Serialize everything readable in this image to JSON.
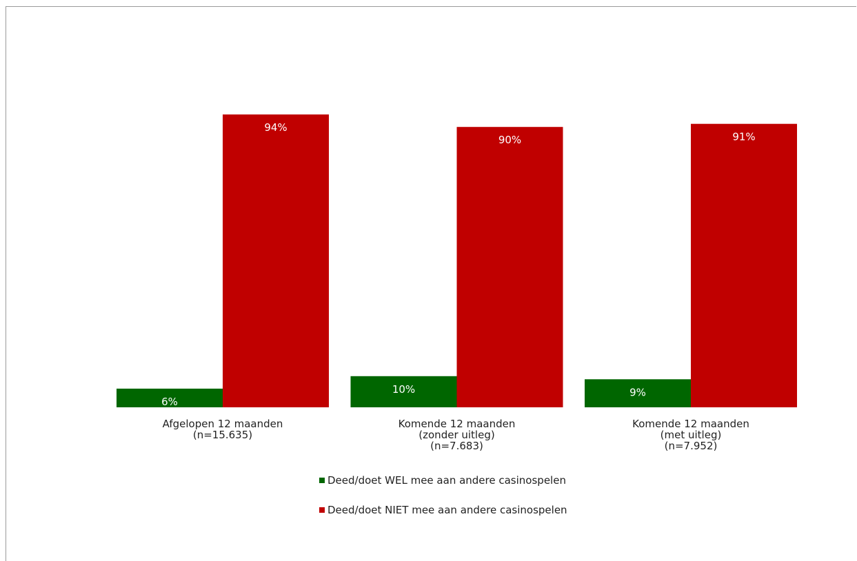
{
  "chart_data": {
    "type": "bar",
    "categories": [
      [
        "Afgelopen 12 maanden",
        "(n=15.635)"
      ],
      [
        "Komende 12 maanden",
        "(zonder uitleg)",
        "(n=7.683)"
      ],
      [
        "Komende 12 maanden",
        "(met uitleg)",
        "(n=7.952)"
      ]
    ],
    "series": [
      {
        "name": "Deed/doet WEL mee aan andere casinospelen",
        "values": [
          6,
          10,
          9
        ],
        "labels": [
          "6%",
          "10%",
          "9%"
        ],
        "color": "#006600"
      },
      {
        "name": "Deed/doet NIET mee aan andere casinospelen",
        "values": [
          94,
          90,
          91
        ],
        "labels": [
          "94%",
          "90%",
          "91%"
        ],
        "color": "#c00000"
      }
    ],
    "ylim": [
      0,
      100
    ],
    "grid": false,
    "legend_position": "bottom"
  }
}
